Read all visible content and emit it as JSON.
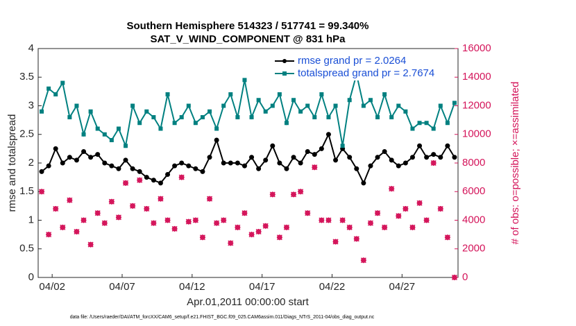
{
  "chart_data": {
    "type": "line",
    "title": "Southern Hemisphere 514323 / 517741 = 99.340%",
    "subtitle": "SAT_V_WIND_COMPONENT @ 831 hPa",
    "xlabel": "Apr.01,2011 00:00:00 start",
    "ylabel": "rmse and totalspread",
    "y2label": "# of obs: o=possible; ×=assimilated",
    "footnote": "data file: /Users/raeder/DAI/ATM_forcXX/CAM6_setup/f.e21.FHIST_BGC.f09_025.CAM6assim.011/Diags_NTrS_2011-04/obs_diag_output.nc",
    "xlim": [
      0,
      30
    ],
    "xticks": [
      {
        "value": 1,
        "label": "04/02"
      },
      {
        "value": 6,
        "label": "04/07"
      },
      {
        "value": 11,
        "label": "04/12"
      },
      {
        "value": 16,
        "label": "04/17"
      },
      {
        "value": 21,
        "label": "04/22"
      },
      {
        "value": 26,
        "label": "04/27"
      }
    ],
    "ylim": [
      0,
      4
    ],
    "yticks": [
      0,
      0.5,
      1,
      1.5,
      2,
      2.5,
      3,
      3.5,
      4
    ],
    "y2lim": [
      0,
      16000
    ],
    "y2ticks": [
      0,
      2000,
      4000,
      6000,
      8000,
      10000,
      12000,
      14000,
      16000
    ],
    "legend": "upper right",
    "x": [
      0.25,
      0.75,
      1.25,
      1.75,
      2.25,
      2.75,
      3.25,
      3.75,
      4.25,
      4.75,
      5.25,
      5.75,
      6.25,
      6.75,
      7.25,
      7.75,
      8.25,
      8.75,
      9.25,
      9.75,
      10.25,
      10.75,
      11.25,
      11.75,
      12.25,
      12.75,
      13.25,
      13.75,
      14.25,
      14.75,
      15.25,
      15.75,
      16.25,
      16.75,
      17.25,
      17.75,
      18.25,
      18.75,
      19.25,
      19.75,
      20.25,
      20.75,
      21.25,
      21.75,
      22.25,
      22.75,
      23.25,
      23.75,
      24.25,
      24.75,
      25.25,
      25.75,
      26.25,
      26.75,
      27.25,
      27.75,
      28.25,
      28.75,
      29.25,
      29.75
    ],
    "series": [
      {
        "name": "rmse grand pr = 2.0264",
        "color": "#000000",
        "marker": "circle",
        "values": [
          1.85,
          1.95,
          2.25,
          2.0,
          2.1,
          2.05,
          2.2,
          2.1,
          2.15,
          2.0,
          1.95,
          1.9,
          2.05,
          1.9,
          1.85,
          1.75,
          1.7,
          1.65,
          1.8,
          1.95,
          2.0,
          1.95,
          1.9,
          1.85,
          2.1,
          2.4,
          2.0,
          2.0,
          2.0,
          1.95,
          2.1,
          1.9,
          2.05,
          2.3,
          2.0,
          1.9,
          2.1,
          2.0,
          2.2,
          2.15,
          2.25,
          2.5,
          2.05,
          2.25,
          2.1,
          1.9,
          1.65,
          1.95,
          2.1,
          2.2,
          2.05,
          1.95,
          2.0,
          2.1,
          2.3,
          2.1,
          2.15,
          2.1,
          2.3,
          2.1
        ]
      },
      {
        "name": "totalspread grand pr = 2.7674",
        "color": "#008080",
        "marker": "square",
        "values": [
          2.9,
          3.3,
          3.2,
          3.4,
          2.8,
          3.0,
          2.5,
          2.9,
          2.6,
          2.5,
          2.4,
          2.6,
          2.3,
          3.0,
          2.7,
          2.9,
          2.8,
          2.6,
          3.2,
          2.7,
          2.8,
          3.0,
          2.7,
          2.8,
          2.9,
          2.6,
          3.0,
          3.2,
          2.8,
          3.45,
          2.8,
          3.1,
          2.9,
          3.0,
          3.2,
          2.7,
          3.1,
          2.9,
          3.0,
          2.8,
          3.2,
          2.8,
          3.0,
          2.3,
          3.1,
          3.55,
          3.0,
          3.1,
          2.8,
          3.2,
          2.8,
          3.0,
          2.9,
          2.6,
          2.7,
          2.7,
          2.6,
          3.0,
          2.7,
          3.05
        ]
      },
      {
        "name": "possible",
        "color": "#d4145a",
        "marker": "o",
        "axis": "y2",
        "values": [
          6000,
          3000,
          4800,
          3500,
          5400,
          3200,
          4000,
          2300,
          4500,
          3800,
          5300,
          4200,
          6600,
          5000,
          6800,
          4800,
          3800,
          5500,
          4000,
          3400,
          7000,
          3900,
          4000,
          2800,
          5500,
          3800,
          4000,
          2400,
          3500,
          4500,
          3000,
          3200,
          3600,
          5800,
          2800,
          3500,
          5800,
          6000,
          4500,
          7700,
          4000,
          4000,
          2500,
          4000,
          3500,
          2700,
          1200,
          3800,
          4500,
          3500,
          6200,
          4300,
          4800,
          3500,
          5200,
          4000,
          8000,
          4800,
          2800,
          0
        ]
      },
      {
        "name": "assimilated",
        "color": "#d4145a",
        "marker": "x",
        "axis": "y2",
        "values": [
          6000,
          3000,
          4800,
          3500,
          5400,
          3200,
          4000,
          2300,
          4500,
          3800,
          5300,
          4200,
          6600,
          5000,
          6800,
          4800,
          3800,
          5500,
          4000,
          3400,
          7000,
          3900,
          4000,
          2800,
          5500,
          3800,
          4000,
          2400,
          3500,
          4500,
          3000,
          3200,
          3600,
          5800,
          2800,
          3500,
          5800,
          6000,
          4500,
          7700,
          4000,
          4000,
          2500,
          4000,
          3500,
          2700,
          1200,
          3800,
          4500,
          3500,
          6200,
          4300,
          4800,
          3500,
          5200,
          4000,
          8000,
          4800,
          2800,
          0
        ]
      }
    ]
  }
}
